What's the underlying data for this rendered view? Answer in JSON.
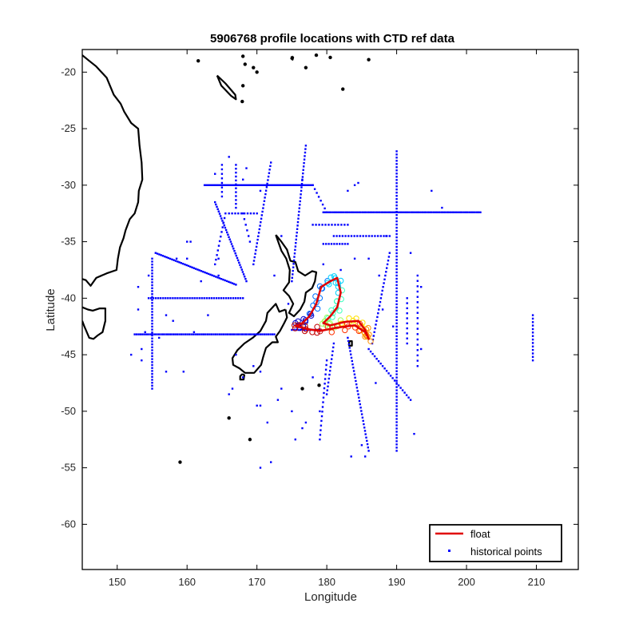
{
  "chart_data": {
    "type": "scatter",
    "title": "5906768 profile locations with CTD ref data",
    "xlabel": "Longitude",
    "ylabel": "Latitude",
    "xlim": [
      145,
      216
    ],
    "ylim": [
      -64,
      -18
    ],
    "xticks": [
      150,
      160,
      170,
      180,
      190,
      200,
      210
    ],
    "yticks": [
      -20,
      -25,
      -30,
      -35,
      -40,
      -45,
      -50,
      -55,
      -60
    ],
    "grid": false,
    "legend_position": "bottom-right",
    "legend": [
      "float",
      "historical points"
    ],
    "colors": {
      "float": "#e00000",
      "historical": "#0000ff",
      "coast": "#000000",
      "trajectory_colormap": [
        "#0000cc",
        "#0070ff",
        "#00d0ff",
        "#40ffc0",
        "#a0ff60",
        "#ffe000",
        "#ff9000",
        "#ff3000",
        "#c00000"
      ]
    },
    "float_track": [
      [
        175.5,
        -42.5
      ],
      [
        176.5,
        -42.2
      ],
      [
        177.5,
        -41.6
      ],
      [
        178.5,
        -40.5
      ],
      [
        179.2,
        -39.0
      ],
      [
        180.5,
        -38.5
      ],
      [
        181.5,
        -38.2
      ],
      [
        182.0,
        -39.5
      ],
      [
        181.5,
        -40.8
      ],
      [
        180.5,
        -41.6
      ],
      [
        179.5,
        -42.2
      ],
      [
        180.5,
        -42.4
      ],
      [
        182.5,
        -42.1
      ],
      [
        184.5,
        -42.0
      ],
      [
        185.5,
        -42.8
      ],
      [
        186.0,
        -43.6
      ],
      [
        185.5,
        -43.0
      ],
      [
        184.0,
        -42.4
      ],
      [
        181.5,
        -42.6
      ],
      [
        179.0,
        -42.9
      ],
      [
        177.0,
        -42.7
      ],
      [
        175.3,
        -42.4
      ]
    ],
    "historical_lines": [
      {
        "from": [
          162.5,
          -30.0
        ],
        "to": [
          178.0,
          -30.0
        ],
        "n": 70
      },
      {
        "from": [
          178.0,
          -30.0
        ],
        "to": [
          180.0,
          -32.4
        ],
        "n": 8
      },
      {
        "from": [
          179.5,
          -32.4
        ],
        "to": [
          202.0,
          -32.4
        ],
        "n": 85
      },
      {
        "from": [
          190.0,
          -27.0
        ],
        "to": [
          190.0,
          -53.5
        ],
        "n": 95
      },
      {
        "from": [
          181.0,
          -34.5
        ],
        "to": [
          189.0,
          -34.5
        ],
        "n": 20
      },
      {
        "from": [
          178.0,
          -33.5
        ],
        "to": [
          183.0,
          -33.5
        ],
        "n": 12
      },
      {
        "from": [
          179.5,
          -35.2
        ],
        "to": [
          183.0,
          -35.2
        ],
        "n": 10
      },
      {
        "from": [
          155.0,
          -36.5
        ],
        "to": [
          155.0,
          -48.0
        ],
        "n": 45
      },
      {
        "from": [
          152.5,
          -43.2
        ],
        "to": [
          172.5,
          -43.2
        ],
        "n": 70
      },
      {
        "from": [
          154.5,
          -40.0
        ],
        "to": [
          168.0,
          -40.0
        ],
        "n": 40
      },
      {
        "from": [
          155.5,
          -36.0
        ],
        "to": [
          167.0,
          -38.8
        ],
        "n": 45
      },
      {
        "from": [
          167.0,
          -28.2
        ],
        "to": [
          167.0,
          -32.0
        ],
        "n": 12
      },
      {
        "from": [
          165.0,
          -28.2
        ],
        "to": [
          165.0,
          -31.0
        ],
        "n": 8
      },
      {
        "from": [
          164.0,
          -31.5
        ],
        "to": [
          168.5,
          -38.5
        ],
        "n": 35
      },
      {
        "from": [
          172.0,
          -28.0
        ],
        "to": [
          169.5,
          -37.0
        ],
        "n": 30
      },
      {
        "from": [
          177.0,
          -26.5
        ],
        "to": [
          175.0,
          -38.5
        ],
        "n": 40
      },
      {
        "from": [
          168.0,
          -32.5
        ],
        "to": [
          169.0,
          -35.0
        ],
        "n": 6
      },
      {
        "from": [
          166.0,
          -32.5
        ],
        "to": [
          170.0,
          -32.5
        ],
        "n": 10
      },
      {
        "from": [
          183.0,
          -43.5
        ],
        "to": [
          186.0,
          -53.5
        ],
        "n": 35
      },
      {
        "from": [
          186.0,
          -44.5
        ],
        "to": [
          192.0,
          -49.0
        ],
        "n": 22
      },
      {
        "from": [
          189.0,
          -36.0
        ],
        "to": [
          186.5,
          -44.0
        ],
        "n": 25
      },
      {
        "from": [
          209.5,
          -41.5
        ],
        "to": [
          209.5,
          -45.5
        ],
        "n": 14
      },
      {
        "from": [
          193.0,
          -38.0
        ],
        "to": [
          193.0,
          -46.0
        ],
        "n": 18
      },
      {
        "from": [
          191.5,
          -40.0
        ],
        "to": [
          191.5,
          -44.0
        ],
        "n": 10
      },
      {
        "from": [
          181.0,
          -44.0
        ],
        "to": [
          180.0,
          -48.5
        ],
        "n": 14
      },
      {
        "from": [
          180.0,
          -45.5
        ],
        "to": [
          179.0,
          -52.5
        ],
        "n": 18
      },
      {
        "from": [
          175.0,
          -42.8
        ],
        "to": [
          179.0,
          -42.8
        ],
        "n": 14
      },
      {
        "from": [
          165.5,
          -32.5
        ],
        "to": [
          164.0,
          -37.0
        ],
        "n": 12
      }
    ],
    "historical_points": [
      [
        153.0,
        -39.0
      ],
      [
        153.0,
        -41.0
      ],
      [
        153.5,
        -44.5
      ],
      [
        153.5,
        -45.5
      ],
      [
        157.0,
        -46.5
      ],
      [
        159.5,
        -46.5
      ],
      [
        160.0,
        -36.5
      ],
      [
        160.0,
        -35.0
      ],
      [
        164.5,
        -36.5
      ],
      [
        164.5,
        -38.0
      ],
      [
        169.5,
        -46.0
      ],
      [
        166.0,
        -48.5
      ],
      [
        170.0,
        -49.5
      ],
      [
        170.5,
        -49.5
      ],
      [
        171.5,
        -51.0
      ],
      [
        175.5,
        -52.5
      ],
      [
        176.5,
        -51.5
      ],
      [
        177.0,
        -51.0
      ],
      [
        183.5,
        -54.0
      ],
      [
        185.5,
        -54.0
      ],
      [
        185.0,
        -53.0
      ],
      [
        192.5,
        -52.0
      ],
      [
        193.5,
        -39.0
      ],
      [
        195.0,
        -30.5
      ],
      [
        196.5,
        -32.0
      ],
      [
        192.0,
        -36.0
      ],
      [
        188.5,
        -34.5
      ],
      [
        172.0,
        -54.5
      ],
      [
        170.5,
        -55.0
      ],
      [
        173.0,
        -49.0
      ],
      [
        173.5,
        -48.0
      ],
      [
        178.0,
        -47.0
      ],
      [
        179.0,
        -50.0
      ],
      [
        175.0,
        -50.0
      ],
      [
        157.0,
        -41.5
      ],
      [
        158.0,
        -42.0
      ],
      [
        152.0,
        -45.0
      ],
      [
        154.5,
        -38.0
      ],
      [
        163.0,
        -41.5
      ],
      [
        167.0,
        -45.0
      ],
      [
        168.0,
        -47.0
      ],
      [
        166.5,
        -48.0
      ],
      [
        170.5,
        -46.5
      ],
      [
        184.0,
        -36.5
      ],
      [
        182.0,
        -37.5
      ],
      [
        179.5,
        -37.0
      ],
      [
        186.0,
        -36.5
      ],
      [
        187.5,
        -38.0
      ],
      [
        188.0,
        -41.0
      ],
      [
        189.5,
        -42.5
      ],
      [
        193.5,
        -44.5
      ],
      [
        187.0,
        -47.5
      ],
      [
        176.5,
        -29.5
      ],
      [
        168.5,
        -28.5
      ],
      [
        164.0,
        -29.0
      ],
      [
        160.5,
        -35.0
      ],
      [
        158.5,
        -36.5
      ],
      [
        166.0,
        -27.5
      ],
      [
        173.5,
        -34.5
      ],
      [
        162.0,
        -38.5
      ],
      [
        161.0,
        -43.0
      ],
      [
        156.0,
        -43.5
      ],
      [
        154.0,
        -43.0
      ],
      [
        183.0,
        -30.5
      ],
      [
        184.0,
        -30.0
      ],
      [
        184.5,
        -29.8
      ],
      [
        168.0,
        -29.5
      ],
      [
        170.5,
        -30.5
      ],
      [
        174.5,
        -40.5
      ],
      [
        172.5,
        -38.0
      ]
    ],
    "coastlines": [
      [
        [
          145.0,
          -18.5
        ],
        [
          146.0,
          -19.0
        ],
        [
          147.0,
          -19.5
        ],
        [
          148.5,
          -20.5
        ],
        [
          149.5,
          -22.0
        ],
        [
          150.5,
          -22.8
        ],
        [
          151.0,
          -23.5
        ],
        [
          152.0,
          -24.5
        ],
        [
          153.0,
          -25.0
        ],
        [
          153.2,
          -26.5
        ],
        [
          153.5,
          -28.0
        ],
        [
          153.6,
          -29.5
        ],
        [
          153.1,
          -30.5
        ],
        [
          153.0,
          -31.5
        ],
        [
          152.5,
          -32.5
        ],
        [
          151.8,
          -33.0
        ],
        [
          151.2,
          -34.0
        ],
        [
          150.9,
          -34.7
        ],
        [
          150.4,
          -35.5
        ],
        [
          150.1,
          -36.5
        ],
        [
          149.9,
          -37.5
        ],
        [
          148.5,
          -37.8
        ],
        [
          147.0,
          -38.2
        ],
        [
          146.2,
          -38.9
        ],
        [
          145.5,
          -38.4
        ],
        [
          145.0,
          -38.3
        ]
      ],
      [
        [
          145.0,
          -40.8
        ],
        [
          145.8,
          -41.0
        ],
        [
          146.5,
          -41.1
        ],
        [
          147.5,
          -40.9
        ],
        [
          148.3,
          -40.9
        ],
        [
          148.3,
          -42.0
        ],
        [
          147.9,
          -43.0
        ],
        [
          147.2,
          -43.3
        ],
        [
          146.6,
          -43.6
        ],
        [
          146.0,
          -43.5
        ],
        [
          145.3,
          -42.5
        ],
        [
          145.0,
          -42.0
        ]
      ],
      [
        [
          172.7,
          -34.4
        ],
        [
          173.5,
          -35.0
        ],
        [
          174.3,
          -35.7
        ],
        [
          174.8,
          -36.7
        ],
        [
          175.5,
          -36.8
        ],
        [
          175.9,
          -37.6
        ],
        [
          176.9,
          -38.0
        ],
        [
          177.9,
          -37.6
        ],
        [
          178.5,
          -37.7
        ],
        [
          178.3,
          -38.5
        ],
        [
          177.9,
          -39.1
        ],
        [
          177.0,
          -39.5
        ],
        [
          176.8,
          -40.3
        ],
        [
          176.2,
          -41.0
        ],
        [
          175.3,
          -41.6
        ],
        [
          174.6,
          -41.3
        ],
        [
          175.2,
          -40.5
        ],
        [
          174.6,
          -39.8
        ],
        [
          173.8,
          -39.3
        ],
        [
          174.6,
          -38.6
        ],
        [
          174.7,
          -37.5
        ],
        [
          174.2,
          -36.5
        ],
        [
          173.5,
          -35.8
        ],
        [
          172.7,
          -34.4
        ]
      ],
      [
        [
          174.1,
          -41.0
        ],
        [
          174.3,
          -41.7
        ],
        [
          173.9,
          -42.2
        ],
        [
          173.3,
          -42.9
        ],
        [
          172.7,
          -43.4
        ],
        [
          173.0,
          -43.9
        ],
        [
          172.2,
          -43.9
        ],
        [
          171.3,
          -44.4
        ],
        [
          170.9,
          -45.2
        ],
        [
          170.6,
          -45.9
        ],
        [
          169.6,
          -46.6
        ],
        [
          168.3,
          -46.6
        ],
        [
          167.5,
          -46.2
        ],
        [
          166.6,
          -45.9
        ],
        [
          166.5,
          -45.3
        ],
        [
          167.2,
          -44.6
        ],
        [
          168.2,
          -44.0
        ],
        [
          169.4,
          -43.5
        ],
        [
          170.5,
          -42.9
        ],
        [
          171.3,
          -42.0
        ],
        [
          171.5,
          -41.3
        ],
        [
          172.1,
          -40.9
        ],
        [
          172.7,
          -40.5
        ],
        [
          173.2,
          -41.2
        ],
        [
          174.1,
          -41.0
        ]
      ],
      [
        [
          167.9,
          -46.7
        ],
        [
          168.2,
          -46.8
        ],
        [
          168.1,
          -47.2
        ],
        [
          167.6,
          -47.2
        ],
        [
          167.6,
          -46.9
        ],
        [
          167.9,
          -46.7
        ]
      ],
      [
        [
          183.2,
          -43.8
        ],
        [
          183.6,
          -43.8
        ],
        [
          183.6,
          -44.2
        ],
        [
          183.2,
          -44.2
        ],
        [
          183.2,
          -43.8
        ]
      ],
      [
        [
          164.3,
          -20.3
        ],
        [
          165.5,
          -21.0
        ],
        [
          166.9,
          -22.0
        ],
        [
          167.0,
          -22.4
        ],
        [
          166.3,
          -22.1
        ],
        [
          164.9,
          -21.2
        ],
        [
          164.3,
          -20.3
        ]
      ],
      [
        [
          175.0,
          -18.6
        ],
        [
          175.2,
          -18.7
        ],
        [
          175.1,
          -18.9
        ],
        [
          174.9,
          -18.8
        ],
        [
          175.0,
          -18.6
        ]
      ]
    ],
    "coast_dots": [
      [
        168.0,
        -18.6
      ],
      [
        168.3,
        -19.3
      ],
      [
        169.5,
        -19.6
      ],
      [
        170.0,
        -20.0
      ],
      [
        168.0,
        -21.2
      ],
      [
        167.9,
        -22.6
      ],
      [
        177.0,
        -19.6
      ],
      [
        178.5,
        -18.5
      ],
      [
        180.5,
        -18.7
      ],
      [
        182.3,
        -21.5
      ],
      [
        186.0,
        -18.9
      ],
      [
        161.6,
        -19.0
      ],
      [
        169.0,
        -52.5
      ],
      [
        166.0,
        -50.6
      ],
      [
        159.0,
        -54.5
      ],
      [
        178.9,
        -47.7
      ],
      [
        176.5,
        -48.0
      ]
    ]
  }
}
